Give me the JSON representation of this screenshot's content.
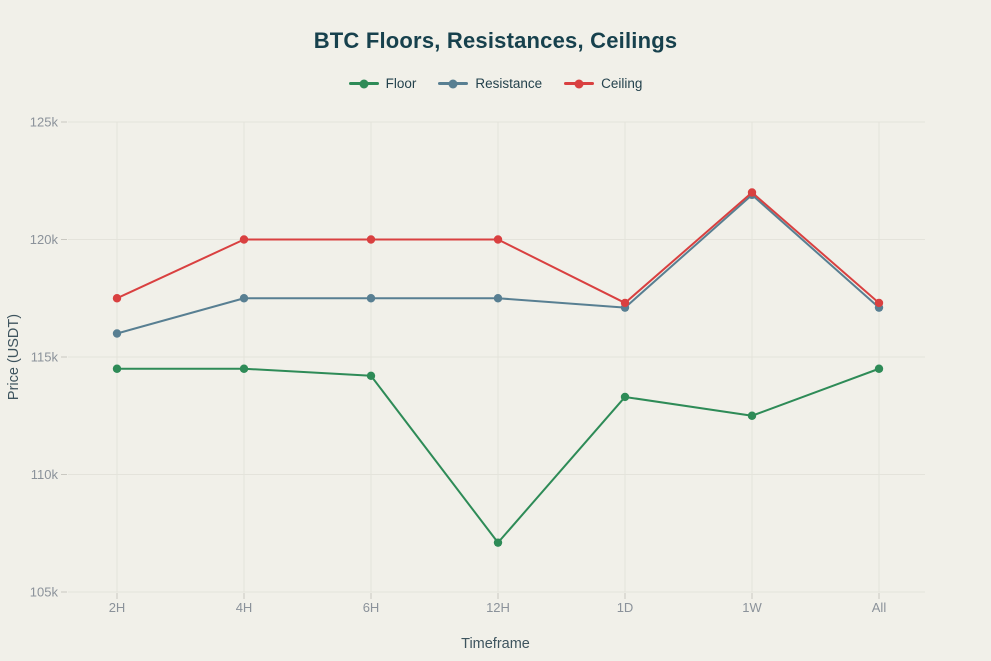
{
  "title": "BTC Floors, Resistances, Ceilings",
  "legend": {
    "items": [
      {
        "label": "Floor",
        "color": "#2e8b57"
      },
      {
        "label": "Resistance",
        "color": "#587f92"
      },
      {
        "label": "Ceiling",
        "color": "#d94040"
      }
    ]
  },
  "chart_data": {
    "type": "line",
    "title": "BTC Floors, Resistances, Ceilings",
    "xlabel": "Timeframe",
    "ylabel": "Price (USDT)",
    "categories": [
      "2H",
      "4H",
      "6H",
      "12H",
      "1D",
      "1W",
      "All"
    ],
    "series": [
      {
        "name": "Floor",
        "color": "#2e8b57",
        "values": [
          114500,
          114500,
          114200,
          107100,
          113300,
          112500,
          114500
        ]
      },
      {
        "name": "Resistance",
        "color": "#587f92",
        "values": [
          116000,
          117500,
          117500,
          117500,
          117100,
          121900,
          117100
        ]
      },
      {
        "name": "Ceiling",
        "color": "#d94040",
        "values": [
          117500,
          120000,
          120000,
          120000,
          117300,
          122000,
          117300
        ]
      }
    ],
    "ylim": [
      105000,
      125000
    ],
    "yticks": [
      105000,
      110000,
      115000,
      120000,
      125000
    ],
    "ytick_labels": [
      "105k",
      "110k",
      "115k",
      "120k",
      "125k"
    ],
    "grid": true,
    "legend_position": "top-center"
  },
  "colors": {
    "background": "#f1f0e9",
    "gridline": "#e4e3db",
    "tick_mark": "#c9c8c1",
    "tick_text": "#8b929a",
    "axis_title_text": "#3e545e",
    "title_text": "#17414d"
  }
}
